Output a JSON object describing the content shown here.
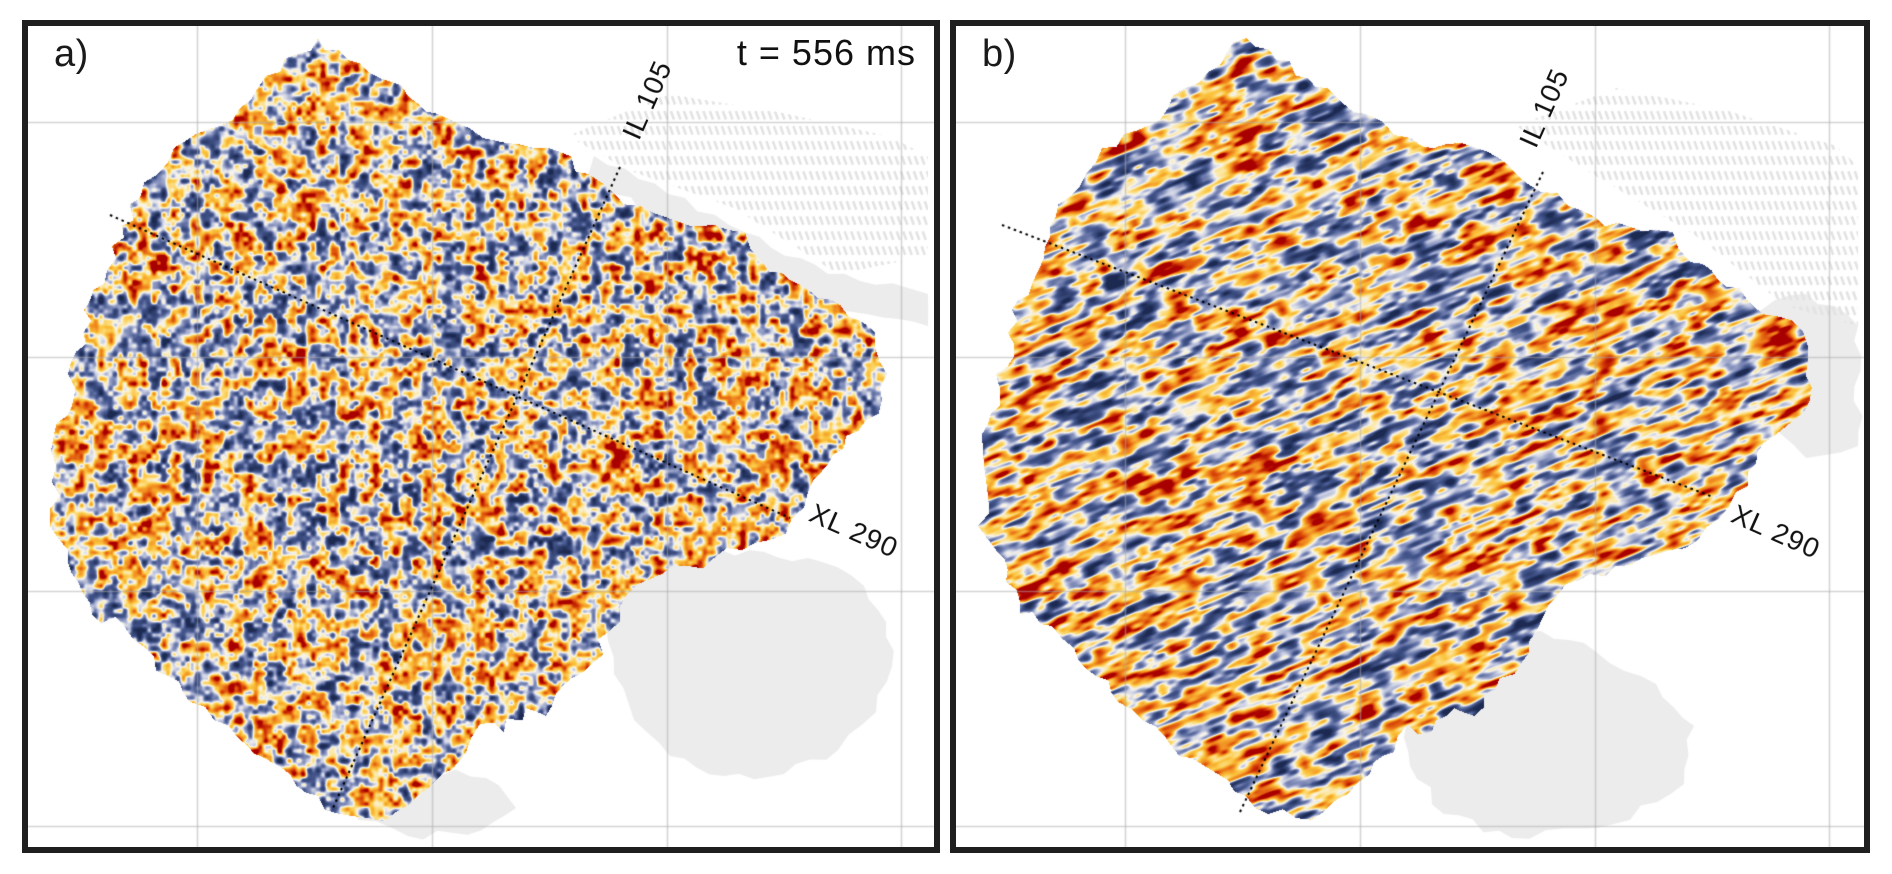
{
  "figure": {
    "type": "seismic-time-slice-comparison",
    "time_annotation": "t = 556 ms",
    "panels": [
      {
        "id": "panel-a",
        "label": "a)",
        "inline_label": "IL 105",
        "crossline_label": "XL 290",
        "shows_time_label": true
      },
      {
        "id": "panel-b",
        "label": "b)",
        "inline_label": "IL 105",
        "crossline_label": "XL 290",
        "shows_time_label": false
      }
    ],
    "colors": {
      "background": "#ffffff",
      "panel_border": "#1f1f1f",
      "grid_line": "#ababab",
      "ghost_fill": "#ececec",
      "ghost_hatch": "#e3e3e3",
      "section_line": "#000000",
      "annotation_text": "#1a1a1a",
      "colormap_stops": [
        {
          "v": -1.0,
          "c": "#1c2a52"
        },
        {
          "v": -0.55,
          "c": "#46588f"
        },
        {
          "v": -0.3,
          "c": "#8b96c0"
        },
        {
          "v": -0.12,
          "c": "#ccd1e4"
        },
        {
          "v": 0.02,
          "c": "#f8f5ec"
        },
        {
          "v": 0.16,
          "c": "#fce59b"
        },
        {
          "v": 0.34,
          "c": "#fbc53e"
        },
        {
          "v": 0.58,
          "c": "#f0891f"
        },
        {
          "v": 0.8,
          "c": "#d84408"
        },
        {
          "v": 1.0,
          "c": "#a80000"
        }
      ]
    }
  }
}
